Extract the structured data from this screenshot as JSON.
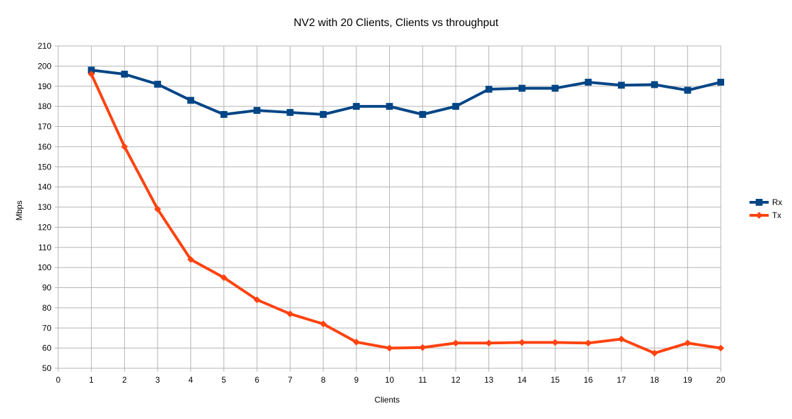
{
  "chart_data": {
    "type": "line",
    "title": "NV2 with 20 Clients, Clients vs throughput",
    "xlabel": "Clients",
    "ylabel": "Mbps",
    "xlim": [
      0,
      20
    ],
    "ylim": [
      50,
      210
    ],
    "y_step": 10,
    "x_step": 1,
    "grid": true,
    "legend_position": "right",
    "x": [
      1,
      2,
      3,
      4,
      5,
      6,
      7,
      8,
      9,
      10,
      11,
      12,
      13,
      14,
      15,
      16,
      17,
      18,
      19,
      20
    ],
    "series": [
      {
        "name": "Rx",
        "color": "#004586",
        "marker": "square",
        "values": [
          198,
          196,
          191,
          183,
          176,
          178,
          177,
          176,
          180,
          180,
          176,
          180,
          188.5,
          189,
          189,
          192,
          190.5,
          190.8,
          188,
          192
        ]
      },
      {
        "name": "Tx",
        "color": "#ff420e",
        "marker": "diamond",
        "values": [
          196,
          160,
          129,
          104,
          95,
          84,
          77,
          72,
          63,
          60,
          60.3,
          62.5,
          62.5,
          62.8,
          62.8,
          62.5,
          64.5,
          57.5,
          62.5,
          60
        ]
      }
    ]
  }
}
